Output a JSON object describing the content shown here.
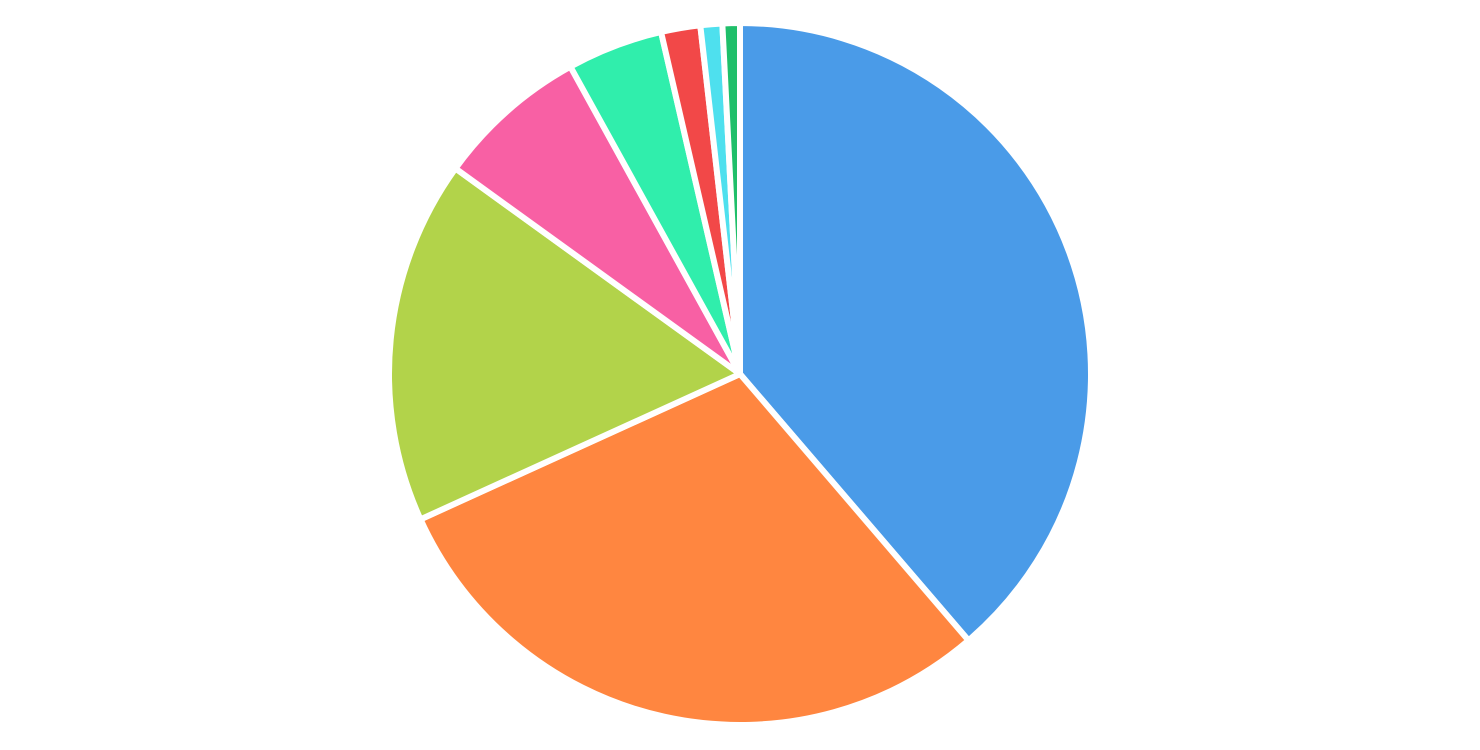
{
  "chart_data": {
    "type": "pie",
    "values": [
      38.6,
      29.4,
      16.7,
      7.0,
      4.4,
      1.8,
      1.0,
      0.8
    ],
    "colors": [
      "#4a9be8",
      "#ff8640",
      "#b2d34a",
      "#f860a4",
      "#30eeac",
      "#f24848",
      "#4ee0ee",
      "#1fbf6a"
    ]
  }
}
